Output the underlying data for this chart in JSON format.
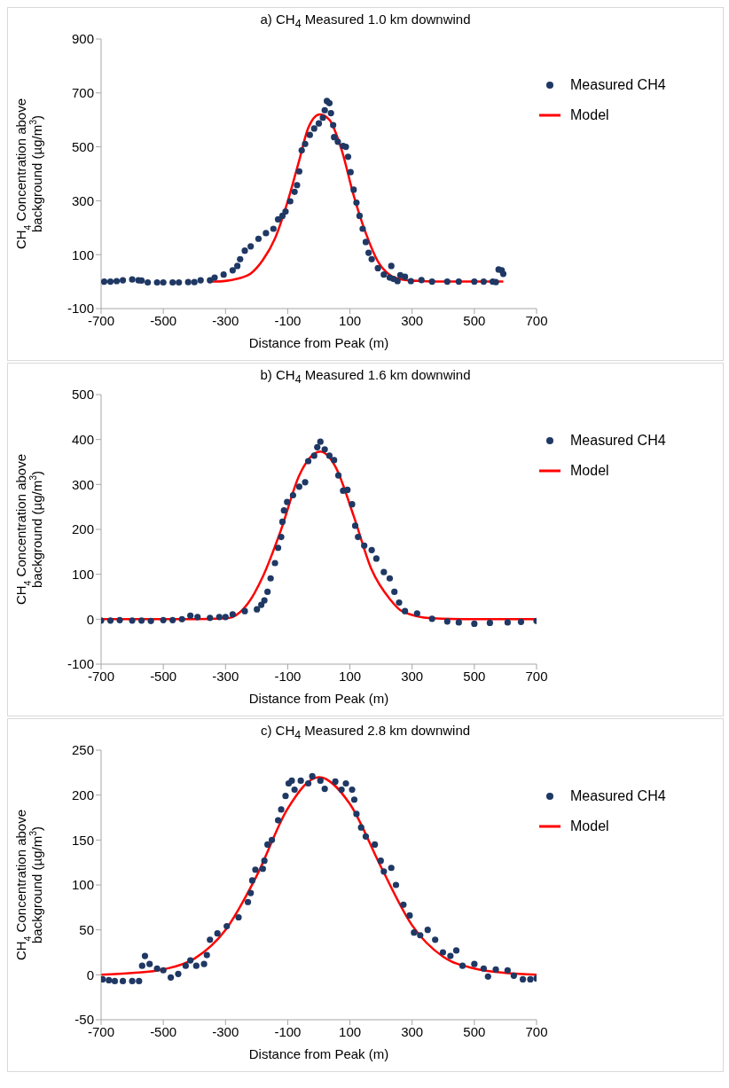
{
  "chart_data": [
    {
      "type": "scatter",
      "title": "a) CH$_{4}$ Measured 1.0 km downwind",
      "xlabel": "Distance from Peak (m)",
      "ylabel": "CH$_{4}$ Concentration above background (µg/m$^{3}$)",
      "xlim": [
        -700,
        700
      ],
      "xticks": [
        -700,
        -500,
        -300,
        -100,
        100,
        300,
        500,
        700
      ],
      "ylim": [
        -100,
        900
      ],
      "yticks": [
        -100,
        100,
        300,
        500,
        700,
        900
      ],
      "grid": false,
      "legend": "top right",
      "marker": "circle",
      "series": [
        {
          "name": "Measured CH4",
          "color": "#1f3864",
          "x": [
            -690,
            -670,
            -650,
            -630,
            -600,
            -580,
            -570,
            -550,
            -520,
            -500,
            -470,
            -450,
            -420,
            -400,
            -380,
            -350,
            -335,
            -306,
            -277,
            -262,
            -253,
            -238,
            -219,
            -194,
            -170,
            -146,
            -131,
            -117,
            -107,
            -92,
            -78,
            -70,
            -63,
            -55,
            -44,
            -29,
            -15,
            0,
            13,
            19,
            26,
            34,
            39,
            46,
            49,
            61,
            78,
            87,
            94,
            102,
            112,
            121,
            131,
            141,
            151,
            160,
            170,
            190,
            209,
            228,
            233,
            240,
            253,
            262,
            277,
            296,
            330,
            364,
            413,
            450,
            500,
            530,
            559,
            569,
            578,
            588,
            593
          ],
          "values": [
            0,
            0,
            2,
            5,
            8,
            5,
            4,
            -3,
            -3,
            -3,
            -3,
            -3,
            -2,
            -2,
            5,
            5,
            15,
            26,
            42,
            58,
            83,
            115,
            131,
            159,
            180,
            196,
            231,
            244,
            260,
            298,
            333,
            358,
            409,
            487,
            511,
            544,
            568,
            587,
            608,
            636,
            670,
            662,
            625,
            581,
            536,
            519,
            503,
            500,
            463,
            406,
            341,
            293,
            244,
            196,
            147,
            107,
            83,
            50,
            26,
            15,
            58,
            10,
            2,
            24,
            18,
            2,
            6,
            0,
            0,
            0,
            0,
            0,
            0,
            -2,
            45,
            42,
            29
          ]
        },
        {
          "name": "Model",
          "color": "#ff0000",
          "type": "line",
          "marker": "none",
          "x": [
            -355,
            -335,
            -258,
            -219,
            -180,
            -141,
            -102,
            -63,
            -34,
            3,
            34,
            73,
            112,
            151,
            190,
            228,
            267,
            330,
            400,
            500,
            593
          ],
          "values": [
            0,
            0,
            12,
            30,
            80,
            160,
            290,
            450,
            570,
            620,
            600,
            490,
            320,
            180,
            75,
            25,
            8,
            2,
            0,
            0,
            0
          ]
        }
      ]
    },
    {
      "type": "scatter",
      "title": "b) CH$_{4}$ Measured 1.6 km downwind",
      "xlabel": "Distance from Peak (m)",
      "ylabel": "CH$_{4}$ Concentration above background (µg/m$^{3}$)",
      "xlim": [
        -700,
        700
      ],
      "xticks": [
        -700,
        -500,
        -300,
        -100,
        100,
        300,
        500,
        700
      ],
      "ylim": [
        -100,
        500
      ],
      "yticks": [
        -100,
        0,
        100,
        200,
        300,
        400,
        500
      ],
      "grid": false,
      "legend": "top right",
      "marker": "circle",
      "series": [
        {
          "name": "Measured CH4",
          "color": "#1f3864",
          "x": [
            -700,
            -670,
            -640,
            -600,
            -570,
            -540,
            -500,
            -470,
            -440,
            -413,
            -390,
            -350,
            -320,
            -300,
            -277,
            -238,
            -199,
            -185,
            -175,
            -165,
            -155,
            -141,
            -131,
            -121,
            -117,
            -112,
            -102,
            -83,
            -63,
            -44,
            -34,
            -15,
            -5,
            5,
            19,
            34,
            49,
            63,
            78,
            92,
            107,
            117,
            126,
            146,
            170,
            185,
            209,
            228,
            243,
            258,
            277,
            316,
            364,
            413,
            450,
            500,
            550,
            607,
            650,
            700
          ],
          "values": [
            -3,
            -3,
            -2,
            -3,
            -3,
            -4,
            -2,
            -2,
            0,
            8,
            5,
            3,
            5,
            5,
            11,
            18,
            22,
            32,
            42,
            61,
            91,
            125,
            159,
            183,
            217,
            242,
            261,
            276,
            295,
            305,
            352,
            364,
            383,
            395,
            378,
            364,
            354,
            320,
            286,
            288,
            256,
            208,
            183,
            164,
            154,
            135,
            105,
            91,
            61,
            37,
            18,
            13,
            1,
            -5,
            -7,
            -10,
            -8,
            -7,
            -6,
            -4
          ]
        },
        {
          "name": "Model",
          "color": "#ff0000",
          "type": "line",
          "marker": "none",
          "x": [
            -700,
            -400,
            -300,
            -277,
            -228,
            -180,
            -121,
            -63,
            5,
            53,
            112,
            170,
            228,
            267,
            364,
            500,
            700
          ],
          "values": [
            0,
            0,
            2,
            5,
            35,
            95,
            200,
            320,
            373,
            340,
            230,
            110,
            45,
            18,
            2,
            0,
            0
          ]
        }
      ]
    },
    {
      "type": "scatter",
      "title": "c) CH$_{4}$ Measured 2.8 km downwind",
      "xlabel": "Distance from Peak (m)",
      "ylabel": "CH$_{4}$ Concentration above background (µg/m$^{3}$)",
      "xlim": [
        -700,
        700
      ],
      "xticks": [
        -700,
        -500,
        -300,
        -100,
        100,
        300,
        500,
        700
      ],
      "ylim": [
        -50,
        250
      ],
      "yticks": [
        -50,
        0,
        50,
        100,
        150,
        200,
        250
      ],
      "grid": false,
      "legend": "top right",
      "marker": "circle",
      "series": [
        {
          "name": "Measured CH4",
          "color": "#1f3864",
          "x": [
            -695,
            -675,
            -656,
            -630,
            -600,
            -578,
            -568,
            -559,
            -544,
            -520,
            -500,
            -476,
            -452,
            -428,
            -413,
            -394,
            -369,
            -360,
            -350,
            -326,
            -296,
            -258,
            -228,
            -219,
            -214,
            -204,
            -180,
            -175,
            -165,
            -151,
            -131,
            -121,
            -107,
            -97,
            -87,
            -78,
            -58,
            -34,
            -21,
            5,
            19,
            53,
            73,
            87,
            107,
            114,
            121,
            136,
            151,
            180,
            199,
            209,
            233,
            248,
            272,
            292,
            306,
            326,
            350,
            374,
            399,
            423,
            442,
            462,
            500,
            530,
            544,
            569,
            607,
            627,
            656,
            680,
            700
          ],
          "values": [
            -5,
            -6,
            -7,
            -7,
            -7,
            -7,
            10,
            21,
            12,
            7,
            5,
            -3,
            1,
            10,
            16,
            10,
            12,
            22,
            39,
            46,
            54,
            64,
            81,
            91,
            105,
            117,
            118,
            127,
            145,
            150,
            172,
            184,
            199,
            213,
            216,
            206,
            216,
            213,
            221,
            216,
            207,
            215,
            206,
            213,
            206,
            195,
            179,
            164,
            154,
            145,
            127,
            115,
            119,
            100,
            78,
            66,
            47,
            44,
            50,
            39,
            25,
            21,
            27,
            10,
            12,
            7,
            -2,
            6,
            5,
            -1,
            -5,
            -5,
            -4
          ]
        },
        {
          "name": "Model",
          "color": "#ff0000",
          "type": "line",
          "marker": "none",
          "x": [
            -700,
            -600,
            -500,
            -400,
            -300,
            -200,
            -100,
            0,
            100,
            200,
            300,
            400,
            500,
            600,
            700
          ],
          "values": [
            0,
            2,
            6,
            18,
            50,
            110,
            185,
            220,
            190,
            120,
            55,
            20,
            7,
            2,
            0
          ]
        }
      ]
    }
  ]
}
